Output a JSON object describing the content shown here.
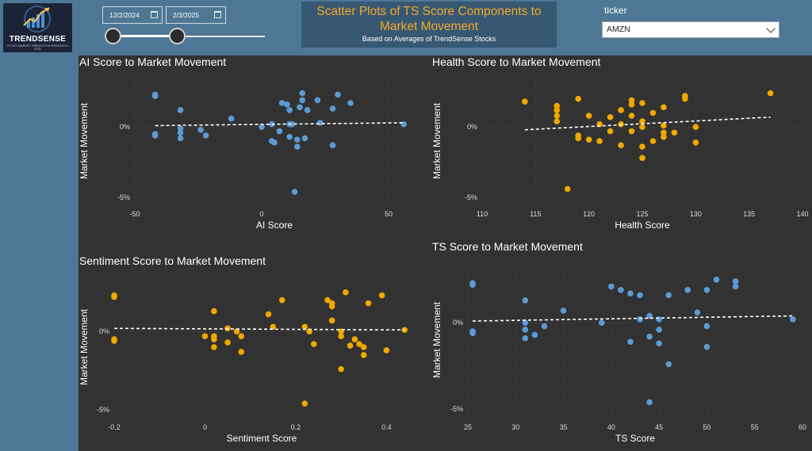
{
  "logo": {
    "text": "TRENDSENSE",
    "tagline": "STOCK MARKET PREDICTION RESEARCH TOOL",
    "icon": "trend-chart-icon"
  },
  "filters": {
    "start_date": "12/2/2024",
    "end_date": "2/3/2025",
    "date_icon": "calendar-icon",
    "ticker_label": "ticker",
    "ticker_value": "AMZN"
  },
  "header": {
    "title": "Scatter Plots of TS Score Components to Market Movement",
    "subtitle": "Based on Averages of TrendSense Stocks"
  },
  "colors": {
    "blue": "#5b9bd5",
    "orange": "#f0a800",
    "panel": "#323232",
    "band": "#4e7795"
  },
  "chart_data": [
    {
      "type": "scatter",
      "title": "AI Score to Market Movement",
      "xlabel": "AI Score",
      "ylabel": "Market Movement",
      "xlim": [
        -50,
        60
      ],
      "ylim": [
        -5.5,
        3.5
      ],
      "xticks": [
        -50,
        0,
        50
      ],
      "yticks": [
        0,
        -5
      ],
      "color": "#5b9bd5",
      "trend": [
        [
          -42,
          0.1
        ],
        [
          56,
          0.3
        ]
      ],
      "points": [
        [
          -42,
          2.2
        ],
        [
          -42,
          2.3
        ],
        [
          -42,
          -0.5
        ],
        [
          -42,
          -0.6
        ],
        [
          -32,
          1.2
        ],
        [
          -32,
          -0.1
        ],
        [
          -32,
          -0.4
        ],
        [
          -32,
          -0.8
        ],
        [
          -24,
          -0.2
        ],
        [
          -22,
          -0.6
        ],
        [
          -12,
          0.6
        ],
        [
          0,
          0
        ],
        [
          4,
          0.2
        ],
        [
          4,
          -1
        ],
        [
          5,
          -1.1
        ],
        [
          7,
          -0.3
        ],
        [
          8,
          1.7
        ],
        [
          10,
          1.6
        ],
        [
          11,
          1.2
        ],
        [
          11,
          0.2
        ],
        [
          11,
          -0.7
        ],
        [
          12,
          0.2
        ],
        [
          13,
          -4.6
        ],
        [
          14,
          -0.9
        ],
        [
          14,
          -1.4
        ],
        [
          15,
          1.4
        ],
        [
          16,
          2.4
        ],
        [
          16,
          1.9
        ],
        [
          17,
          -0.8
        ],
        [
          18,
          1.2
        ],
        [
          22,
          1.9
        ],
        [
          23,
          0.3
        ],
        [
          28,
          1.3
        ],
        [
          28,
          -1.3
        ],
        [
          30,
          2.3
        ],
        [
          35,
          1.7
        ],
        [
          56,
          0.2
        ]
      ]
    },
    {
      "type": "scatter",
      "title": "Health Score to Market Movement",
      "xlabel": "Health Score",
      "ylabel": "Market Movement",
      "xlim": [
        110,
        140
      ],
      "ylim": [
        -5.5,
        3.5
      ],
      "xticks": [
        110,
        115,
        120,
        125,
        130,
        135,
        140
      ],
      "yticks": [
        0,
        -5
      ],
      "color": "#f0a800",
      "trend": [
        [
          114,
          -0.2
        ],
        [
          137,
          0.7
        ]
      ],
      "points": [
        [
          114,
          1.8
        ],
        [
          117,
          1.5
        ],
        [
          117,
          1.2
        ],
        [
          117,
          0.8
        ],
        [
          117,
          0.4
        ],
        [
          118,
          -4.4
        ],
        [
          119,
          2.0
        ],
        [
          119,
          -0.6
        ],
        [
          119,
          -0.8
        ],
        [
          120,
          0.8
        ],
        [
          120,
          -0.9
        ],
        [
          121,
          -1.0
        ],
        [
          121,
          0.2
        ],
        [
          122,
          -0.3
        ],
        [
          122,
          0.7
        ],
        [
          123,
          1.2
        ],
        [
          123,
          0.2
        ],
        [
          123,
          -1.3
        ],
        [
          124,
          -0.3
        ],
        [
          124,
          0.8
        ],
        [
          124,
          1.6
        ],
        [
          124,
          1.9
        ],
        [
          125,
          1.7
        ],
        [
          125,
          0.4
        ],
        [
          125,
          0.0
        ],
        [
          125,
          -2.2
        ],
        [
          125,
          -1.4
        ],
        [
          126,
          -1.0
        ],
        [
          126,
          1.0
        ],
        [
          127,
          0.1
        ],
        [
          127,
          -0.7
        ],
        [
          127,
          -0.4
        ],
        [
          127,
          1.4
        ],
        [
          128,
          -0.4
        ],
        [
          129,
          2.0
        ],
        [
          129,
          2.2
        ],
        [
          130,
          -1.1
        ],
        [
          130,
          0.0
        ],
        [
          137,
          2.4
        ]
      ]
    },
    {
      "type": "scatter",
      "title": "Sentiment Score to Market Movement",
      "xlabel": "Sentiment Score",
      "ylabel": "Market Movement",
      "xlim": [
        -0.2,
        0.45
      ],
      "ylim": [
        -5.5,
        3.5
      ],
      "xticks": [
        -0.2,
        0.0,
        0.2,
        0.4
      ],
      "yticks": [
        0,
        -5
      ],
      "color": "#f0a800",
      "trend": [
        [
          -0.2,
          0.2
        ],
        [
          0.44,
          0.1
        ]
      ],
      "points": [
        [
          -0.2,
          2.3
        ],
        [
          -0.2,
          2.2
        ],
        [
          -0.2,
          -0.6
        ],
        [
          -0.2,
          -0.5
        ],
        [
          0.0,
          -0.3
        ],
        [
          0.02,
          1.3
        ],
        [
          0.02,
          -0.3
        ],
        [
          0.02,
          -0.5
        ],
        [
          0.02,
          -1.0
        ],
        [
          0.05,
          0.2
        ],
        [
          0.05,
          -0.7
        ],
        [
          0.07,
          0.0
        ],
        [
          0.08,
          -0.3
        ],
        [
          0.08,
          -1.3
        ],
        [
          0.14,
          1.1
        ],
        [
          0.15,
          0.3
        ],
        [
          0.17,
          2.0
        ],
        [
          0.22,
          -4.6
        ],
        [
          0.22,
          0.3
        ],
        [
          0.23,
          0.0
        ],
        [
          0.24,
          -0.8
        ],
        [
          0.27,
          2.0
        ],
        [
          0.28,
          1.8
        ],
        [
          0.28,
          1.6
        ],
        [
          0.28,
          0.7
        ],
        [
          0.3,
          0.0
        ],
        [
          0.3,
          -0.3
        ],
        [
          0.3,
          -2.4
        ],
        [
          0.31,
          2.5
        ],
        [
          0.32,
          -0.9
        ],
        [
          0.33,
          -0.5
        ],
        [
          0.34,
          -0.8
        ],
        [
          0.35,
          -1.5
        ],
        [
          0.35,
          -1.0
        ],
        [
          0.36,
          1.8
        ],
        [
          0.39,
          2.3
        ],
        [
          0.4,
          -1.2
        ],
        [
          0.44,
          0.1
        ]
      ]
    },
    {
      "type": "scatter",
      "title": "TS Score to Market Movement",
      "xlabel": "TS Score",
      "ylabel": "Market Movement",
      "xlim": [
        25,
        60
      ],
      "ylim": [
        -5.5,
        3.5
      ],
      "xticks": [
        25,
        30,
        35,
        40,
        45,
        50,
        55,
        60
      ],
      "yticks": [
        0,
        -5
      ],
      "color": "#5b9bd5",
      "trend": [
        [
          25.5,
          0.1
        ],
        [
          59,
          0.4
        ]
      ],
      "points": [
        [
          25.5,
          2.3
        ],
        [
          25.5,
          2.2
        ],
        [
          25.5,
          -0.5
        ],
        [
          25.5,
          -0.6
        ],
        [
          31,
          1.3
        ],
        [
          31,
          0.0
        ],
        [
          31,
          -0.4
        ],
        [
          31,
          -0.9
        ],
        [
          32,
          -0.7
        ],
        [
          33,
          -0.2
        ],
        [
          35,
          0.7
        ],
        [
          39,
          0.0
        ],
        [
          40,
          2.1
        ],
        [
          41,
          1.9
        ],
        [
          42,
          1.7
        ],
        [
          42,
          -1.1
        ],
        [
          43,
          1.6
        ],
        [
          43,
          0.2
        ],
        [
          44,
          -4.6
        ],
        [
          44,
          0.4
        ],
        [
          44,
          -0.8
        ],
        [
          45,
          -1.2
        ],
        [
          45,
          -0.4
        ],
        [
          45,
          0.2
        ],
        [
          46,
          1.6
        ],
        [
          46,
          -2.4
        ],
        [
          48,
          1.9
        ],
        [
          49,
          0.6
        ],
        [
          50,
          1.9
        ],
        [
          50,
          -0.2
        ],
        [
          50,
          -1.4
        ],
        [
          51,
          2.5
        ],
        [
          53,
          2.4
        ],
        [
          53,
          2.1
        ],
        [
          59,
          0.2
        ]
      ]
    }
  ]
}
